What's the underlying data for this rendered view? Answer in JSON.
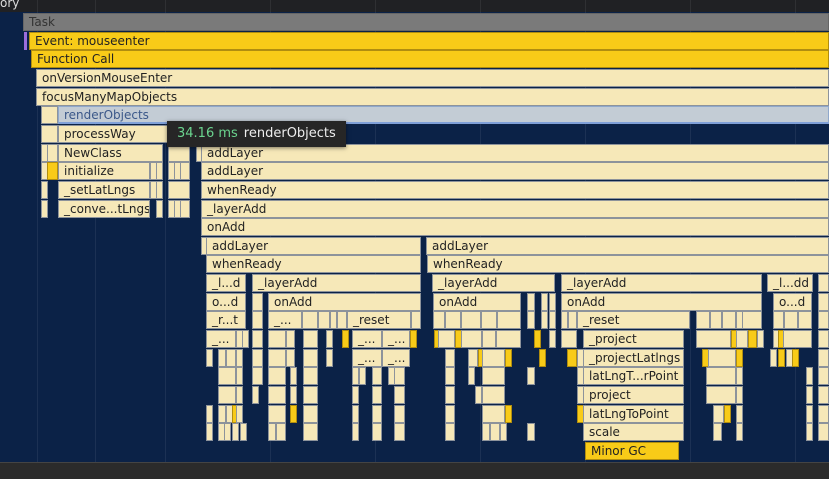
{
  "header": {
    "track_label": "ory"
  },
  "labels": {
    "task": "Task",
    "event": "Event: mouseenter",
    "function_call": "Function Call",
    "on_version": "onVersionMouseEnter",
    "focus": "focusManyMapObjects",
    "render_objects": "renderObjects",
    "process_way": "processWay",
    "new_class": "NewClass",
    "initialize": "initialize",
    "set_lat_lngs": "_setLatLngs",
    "conve": "_conve...tLngs",
    "add_layer": "addLayer",
    "when_ready": "whenReady",
    "layer_add": "_layerAdd",
    "on_add": "onAdd",
    "l_d": "_l...d",
    "l_dd": "_l...dd",
    "o_d": "o...d",
    "r_t": "_r...t",
    "ellipsis": "_...",
    "reset": "_reset",
    "project_fn": "_project",
    "project_latlngs": "_projectLatlngs",
    "lat_lng_t_r_point": "latLngT...rPoint",
    "project": "project",
    "lat_lng_to_point": "latLngToPoint",
    "scale": "scale",
    "minor_gc": "Minor GC"
  },
  "tooltip": {
    "duration": "34.16 ms",
    "name": "renderObjects"
  },
  "colors": {
    "background": "#0b2247",
    "js": "#f6e8b8",
    "system": "#f8cb18",
    "task": "#7a7a7a",
    "selected": "#c3ccd5",
    "duration": "#6bd48f"
  }
}
